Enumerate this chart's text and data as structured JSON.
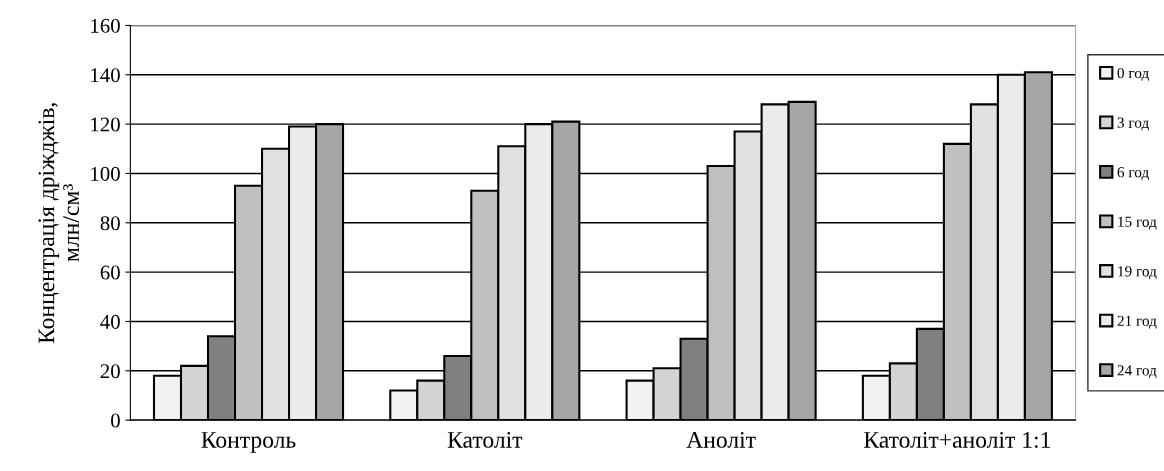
{
  "chart_data": {
    "type": "bar",
    "ylabel": "Концентрація дріжджів,\nмлн/см³",
    "categories": [
      "Контроль",
      "Католіт",
      "Аноліт",
      "Католіт+аноліт 1:1"
    ],
    "series": [
      {
        "name": "0 год",
        "color": "#f2f2f2",
        "values": [
          18,
          12,
          16,
          18
        ]
      },
      {
        "name": "3 год",
        "color": "#d4d4d4",
        "values": [
          22,
          16,
          21,
          23
        ]
      },
      {
        "name": "6 год",
        "color": "#808080",
        "values": [
          34,
          26,
          33,
          37
        ]
      },
      {
        "name": "15 год",
        "color": "#c0c0c0",
        "values": [
          95,
          93,
          103,
          112
        ]
      },
      {
        "name": "19 год",
        "color": "#e0e0e0",
        "values": [
          110,
          111,
          117,
          128
        ]
      },
      {
        "name": "21 год",
        "color": "#ebebeb",
        "values": [
          119,
          120,
          128,
          140
        ]
      },
      {
        "name": "24 год",
        "color": "#a6a6a6",
        "values": [
          120,
          121,
          129,
          141
        ]
      }
    ],
    "ylim": [
      0,
      160
    ],
    "yticks": [
      0,
      20,
      40,
      60,
      80,
      100,
      120,
      140,
      160
    ],
    "grid": "y",
    "legend": "right"
  }
}
